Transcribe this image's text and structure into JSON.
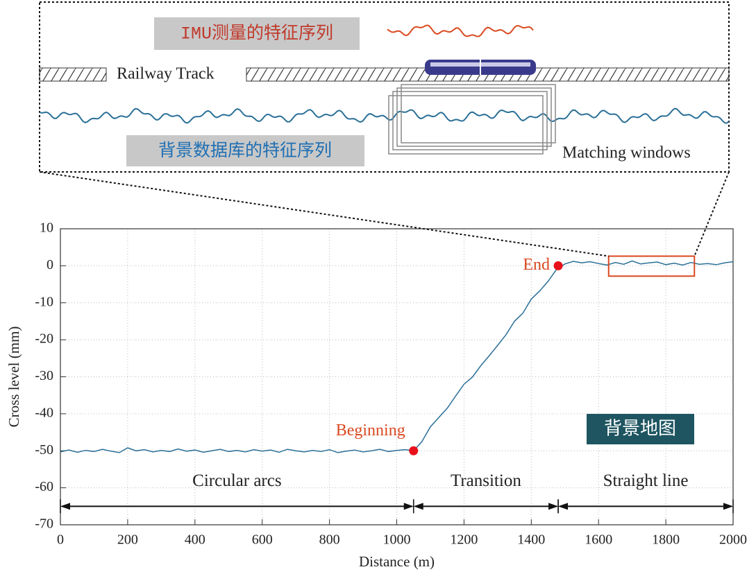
{
  "schematic": {
    "imu_label": "IMU测量的特征序列",
    "track_label": "Railway Track",
    "database_label": "背景数据库的特征序列",
    "windows_label": "Matching windows"
  },
  "chart_data": {
    "type": "line",
    "xlabel": "Distance (m)",
    "ylabel": "Cross level (mm)",
    "x": [
      0,
      25,
      50,
      75,
      100,
      125,
      150,
      175,
      200,
      225,
      250,
      275,
      300,
      325,
      350,
      375,
      400,
      425,
      450,
      475,
      500,
      525,
      550,
      575,
      600,
      625,
      650,
      675,
      700,
      725,
      750,
      775,
      800,
      825,
      850,
      875,
      900,
      925,
      950,
      975,
      1000,
      1025,
      1050,
      1075,
      1100,
      1125,
      1150,
      1175,
      1200,
      1225,
      1250,
      1275,
      1300,
      1325,
      1350,
      1375,
      1400,
      1425,
      1450,
      1475,
      1500,
      1525,
      1550,
      1575,
      1600,
      1625,
      1650,
      1675,
      1700,
      1725,
      1750,
      1775,
      1800,
      1825,
      1850,
      1875,
      1900,
      1925,
      1950,
      1975,
      2000
    ],
    "values": [
      -50.3,
      -49.8,
      -50.4,
      -49.9,
      -50.2,
      -49.6,
      -50.1,
      -50.5,
      -49.2,
      -50.0,
      -49.7,
      -50.3,
      -49.9,
      -50.2,
      -49.5,
      -50.1,
      -49.8,
      -50.4,
      -50.0,
      -49.6,
      -50.2,
      -49.9,
      -50.3,
      -49.7,
      -50.1,
      -49.8,
      -50.4,
      -49.6,
      -50.0,
      -50.3,
      -49.9,
      -50.2,
      -49.7,
      -50.5,
      -50.1,
      -49.8,
      -50.3,
      -50.0,
      -49.6,
      -50.2,
      -49.9,
      -49.7,
      -50.0,
      -47.5,
      -43.5,
      -41.0,
      -38.5,
      -35.2,
      -32.0,
      -30.1,
      -27.0,
      -24.3,
      -21.5,
      -18.6,
      -15.0,
      -12.8,
      -9.0,
      -6.8,
      -4.2,
      -1.0,
      0.5,
      1.2,
      0.8,
      1.1,
      0.6,
      0.2,
      0.9,
      0.4,
      1.3,
      0.5,
      0.8,
      1.0,
      0.3,
      0.7,
      0.2,
      0.9,
      0.4,
      0.6,
      0.3,
      0.8,
      1.1
    ],
    "color": "#2a6f97",
    "xlim": [
      0,
      2000
    ],
    "ylim": [
      -70,
      10
    ],
    "xticks": [
      0,
      200,
      400,
      600,
      800,
      1000,
      1200,
      1400,
      1600,
      1800,
      2000
    ],
    "yticks": [
      -70,
      -60,
      -50,
      -40,
      -30,
      -20,
      -10,
      0,
      10
    ],
    "grid": true,
    "points": [
      {
        "label": "Beginning",
        "x": 1050,
        "y": -50
      },
      {
        "label": "End",
        "x": 1480,
        "y": 0
      }
    ],
    "point_color": "#e8101a",
    "segments": [
      {
        "label": "Circular arcs",
        "start": 0,
        "end": 1050
      },
      {
        "label": "Transition",
        "start": 1050,
        "end": 1480
      },
      {
        "label": "Straight line",
        "start": 1480,
        "end": 2000
      }
    ],
    "segment_y": -65,
    "highlight": {
      "x": [
        1630,
        1885
      ],
      "y": [
        -2.8,
        2.6
      ],
      "color": "#d9491f"
    },
    "map_label": "背景地图"
  }
}
